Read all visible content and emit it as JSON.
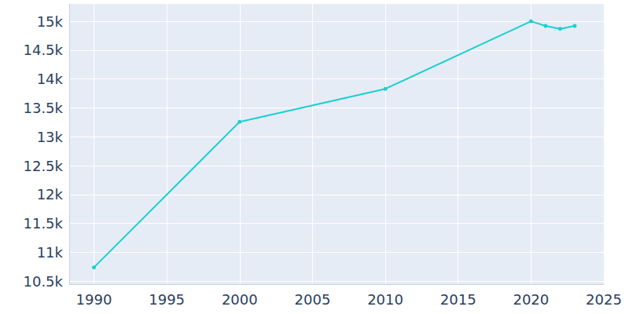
{
  "chart_data": {
    "type": "line",
    "x": [
      1990,
      2000,
      2010,
      2020,
      2021,
      2022,
      2023
    ],
    "values": [
      10740,
      13260,
      13830,
      15000,
      14920,
      14870,
      14920
    ],
    "color": "#1ccfd0",
    "marker": "circle",
    "xlim": [
      1988.3,
      2025
    ],
    "xticks": [
      1990,
      1995,
      2000,
      2005,
      2010,
      2015,
      2020,
      2025
    ],
    "ylim": [
      10450,
      15300
    ],
    "yticks": [
      {
        "value": 10500,
        "label": "10.5k"
      },
      {
        "value": 11000,
        "label": "11k"
      },
      {
        "value": 11500,
        "label": "11.5k"
      },
      {
        "value": 12000,
        "label": "12k"
      },
      {
        "value": 12500,
        "label": "12.5k"
      },
      {
        "value": 13000,
        "label": "13k"
      },
      {
        "value": 13500,
        "label": "13.5k"
      },
      {
        "value": 14000,
        "label": "14k"
      },
      {
        "value": 14500,
        "label": "14.5k"
      },
      {
        "value": 15000,
        "label": "15k"
      }
    ],
    "grid": true
  }
}
